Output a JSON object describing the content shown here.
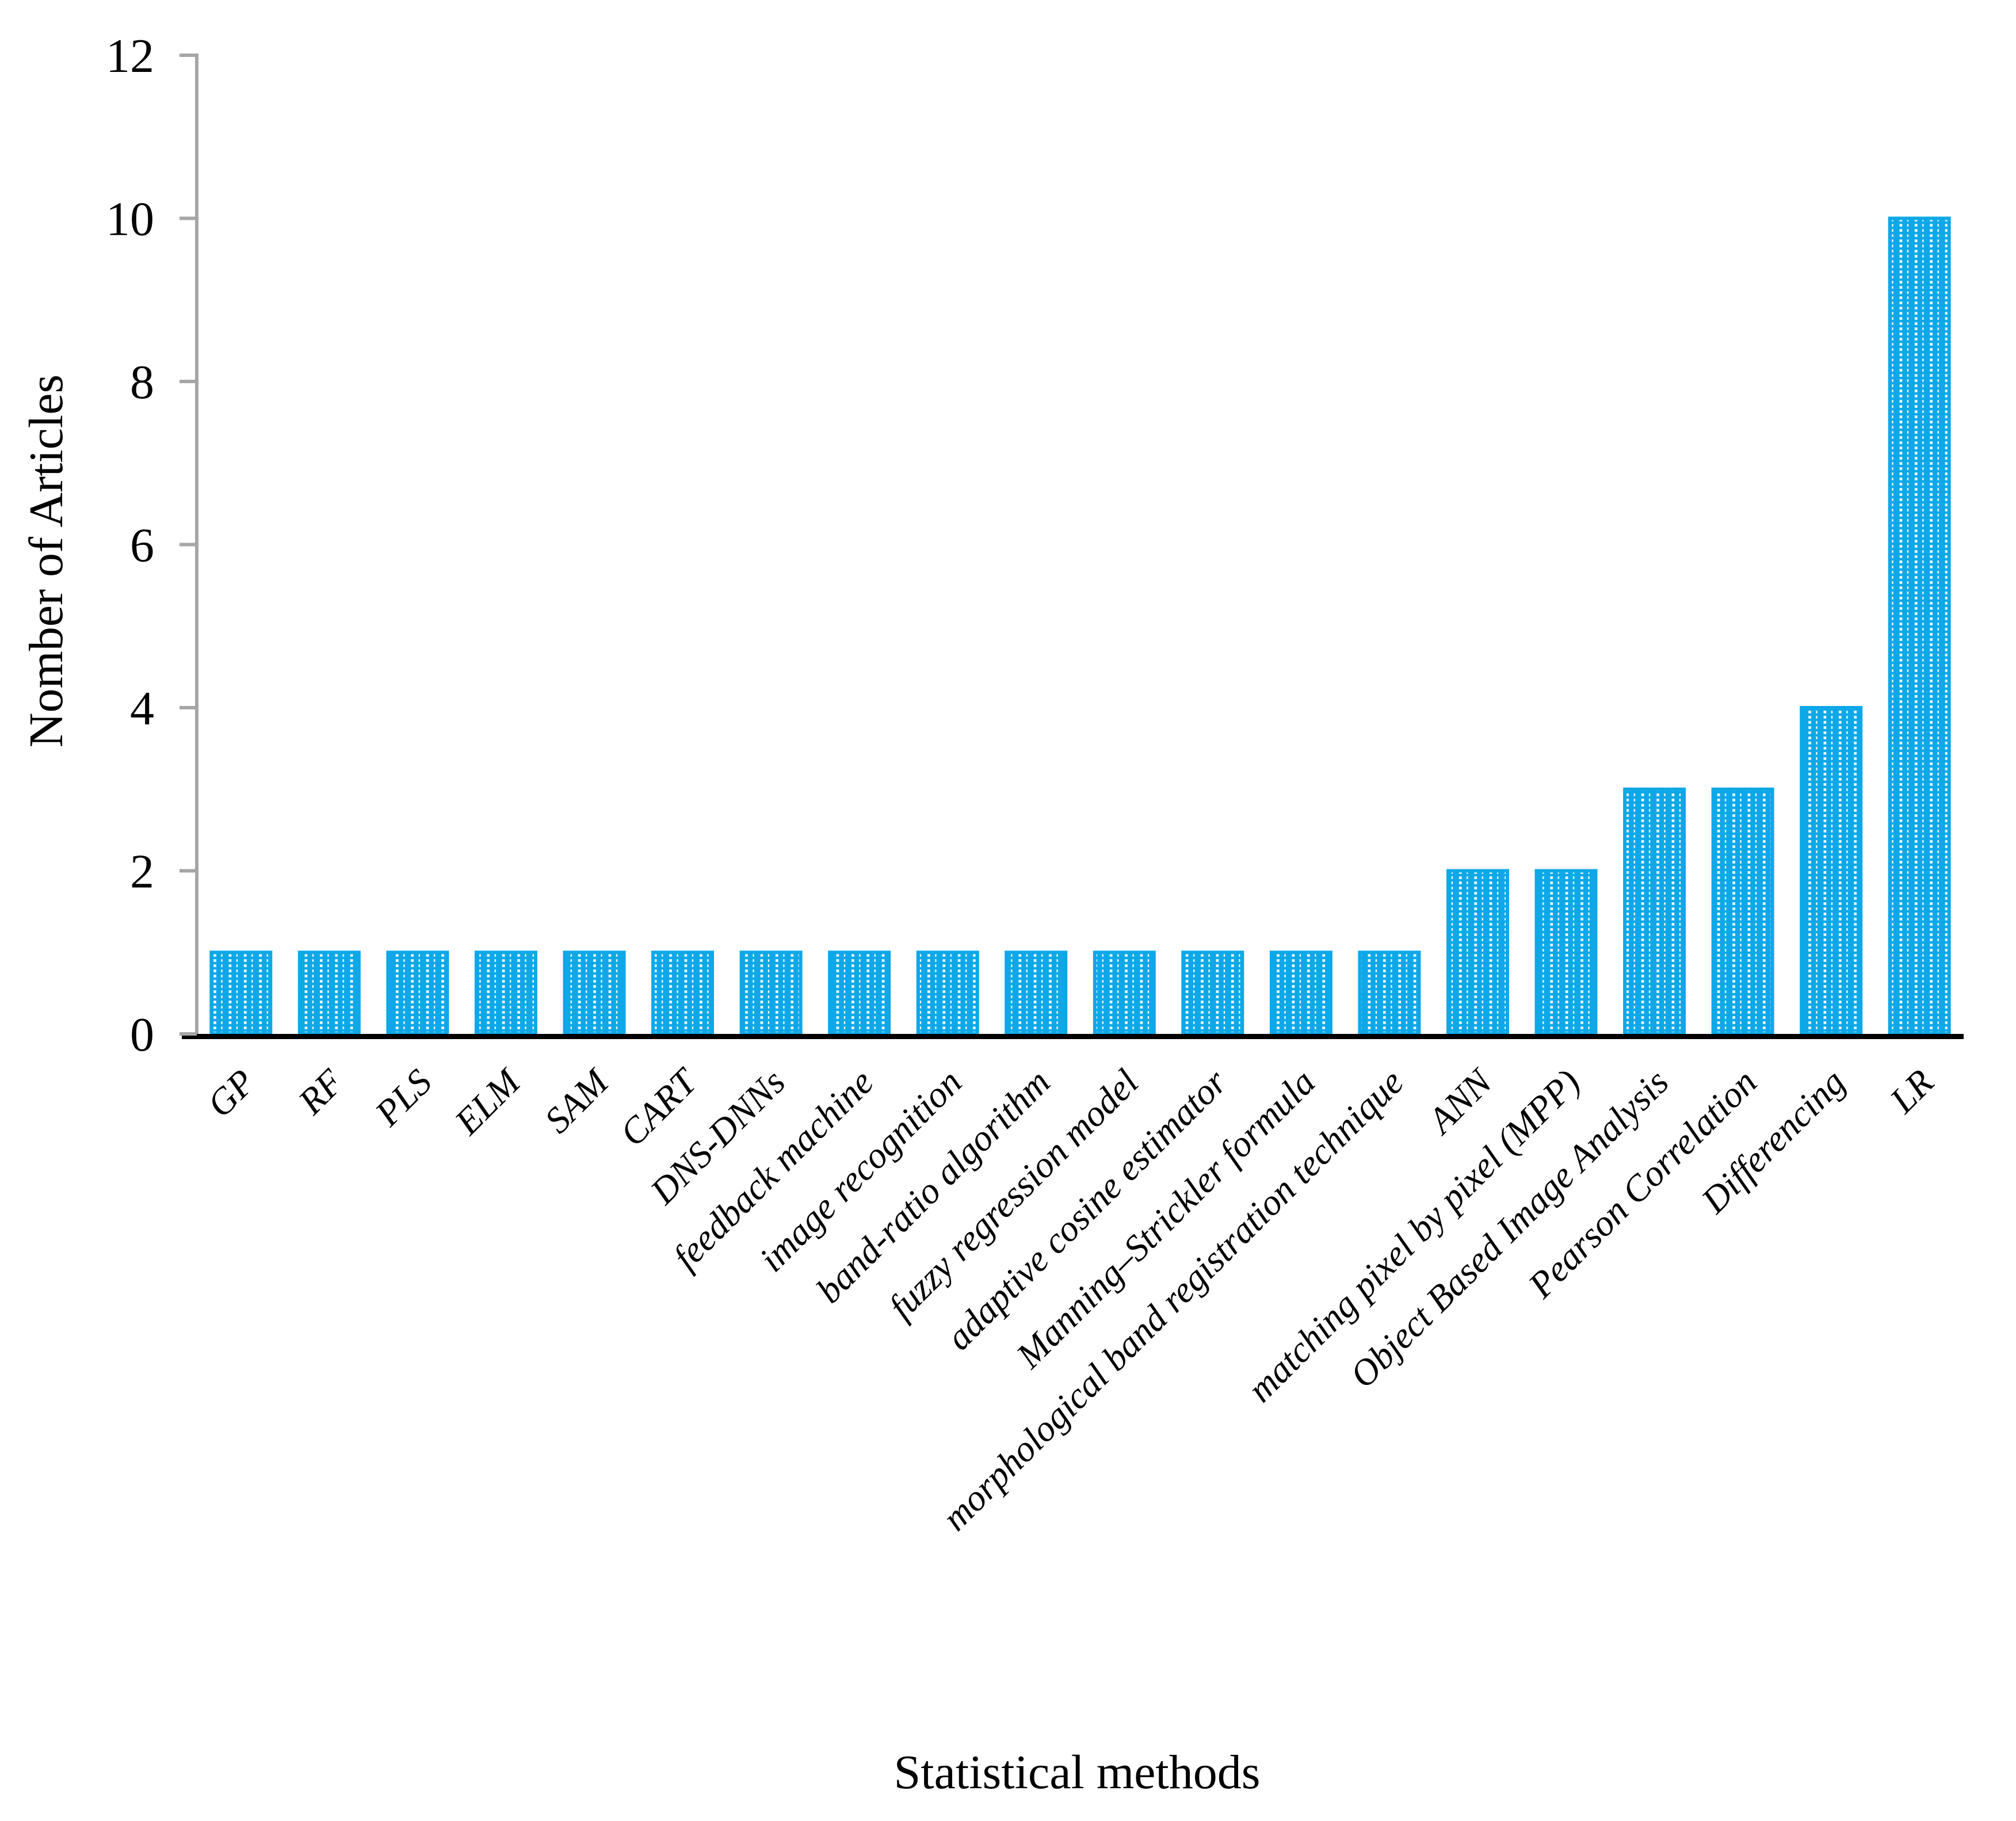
{
  "chart_data": {
    "type": "bar",
    "title": "",
    "xlabel": "Statistical methods",
    "ylabel": "Nomber of Articles",
    "categories": [
      "GP",
      "RF",
      "PLS",
      "ELM",
      "SAM",
      "CART",
      "DNS-DNNs",
      "feedback machine",
      "image recognition",
      "band-ratio algorithm",
      "fuzzy regression model",
      "adaptive cosine estimator",
      "Manning–Strickler formula",
      "morphological band registration technique",
      "ANN",
      "matching pixel by pixel (MPP)",
      "Object Based Image Analysis",
      "Pearson Correlation",
      "Differencing",
      "LR"
    ],
    "values": [
      1,
      1,
      1,
      1,
      1,
      1,
      1,
      1,
      1,
      1,
      1,
      1,
      1,
      1,
      2,
      2,
      3,
      3,
      4,
      10
    ],
    "ylim": [
      0,
      12
    ],
    "yticks": [
      0,
      2,
      4,
      6,
      8,
      10,
      12
    ],
    "grid": false,
    "legend": null,
    "bar_color": "#0EA8E8",
    "bar_pattern": "white-dotted-grid",
    "pattern_dot_color": "#ffffff",
    "axis_color": "#A6A6A6",
    "baseline_color": "#000000",
    "label_rotation_deg": -45
  }
}
